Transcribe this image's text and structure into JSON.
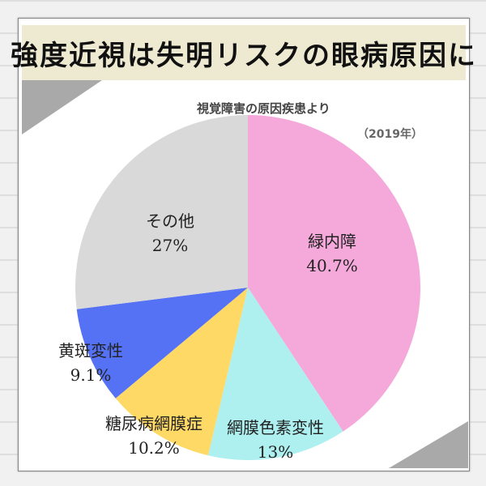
{
  "title": "強度近視は失明リスクの眼病原因に",
  "subtitle": "視覚障害の原因疾患より",
  "year_note": "（2019年）",
  "chart_data": {
    "type": "pie",
    "start": "top",
    "direction": "clockwise",
    "slices": [
      {
        "label": "緑内障",
        "value": 40.7,
        "display": "40.7%",
        "color": "#f5a9db"
      },
      {
        "label": "網膜色素変性",
        "value": 13,
        "display": "13%",
        "color": "#aef0f0"
      },
      {
        "label": "糖尿病網膜症",
        "value": 10.2,
        "display": "10.2%",
        "color": "#ffd966"
      },
      {
        "label": "黄斑変性",
        "value": 9.1,
        "display": "9.1%",
        "color": "#5572f5"
      },
      {
        "label": "その他",
        "value": 27,
        "display": "27%",
        "color": "#d9d9d9"
      }
    ]
  }
}
